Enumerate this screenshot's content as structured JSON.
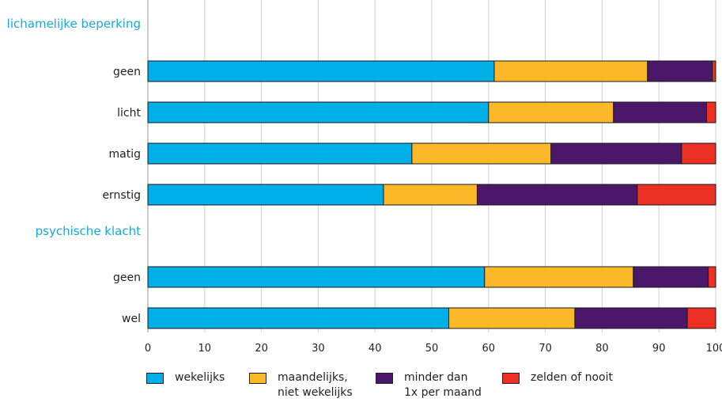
{
  "chart_data": {
    "type": "bar",
    "orientation": "horizontal",
    "stacked": true,
    "groups": [
      {
        "label": "lichamelijke beperking",
        "categories": [
          "geen",
          "licht",
          "matig",
          "ernstig"
        ]
      },
      {
        "label": "psychische klacht",
        "categories": [
          "geen",
          "wel"
        ]
      }
    ],
    "categories": [
      "geen",
      "licht",
      "matig",
      "ernstig",
      "geen",
      "wel"
    ],
    "series": [
      {
        "name": "wekelijks",
        "color": "#00aee8",
        "values": [
          61,
          60,
          46.5,
          41.5,
          59.3,
          53
        ]
      },
      {
        "name": "maandelijks,\nniet wekelijks",
        "color": "#fbb92a",
        "values": [
          27,
          22,
          24.5,
          16.5,
          26.2,
          22.2
        ]
      },
      {
        "name": "minder dan\n1x per maand",
        "color": "#4b1769",
        "values": [
          11.4,
          16.4,
          23,
          28.2,
          13.2,
          19.8
        ]
      },
      {
        "name": "zelden of nooit",
        "color": "#ec3023",
        "values": [
          0.6,
          1.6,
          6,
          13.8,
          1.3,
          5
        ]
      }
    ],
    "xlim": [
      0,
      100
    ],
    "xticks": [
      "0",
      "10",
      "20",
      "30",
      "40",
      "50",
      "60",
      "70",
      "80",
      "90",
      "100"
    ],
    "grid": true,
    "group_label_color": "#1aa7dd",
    "legend_position": "bottom"
  }
}
